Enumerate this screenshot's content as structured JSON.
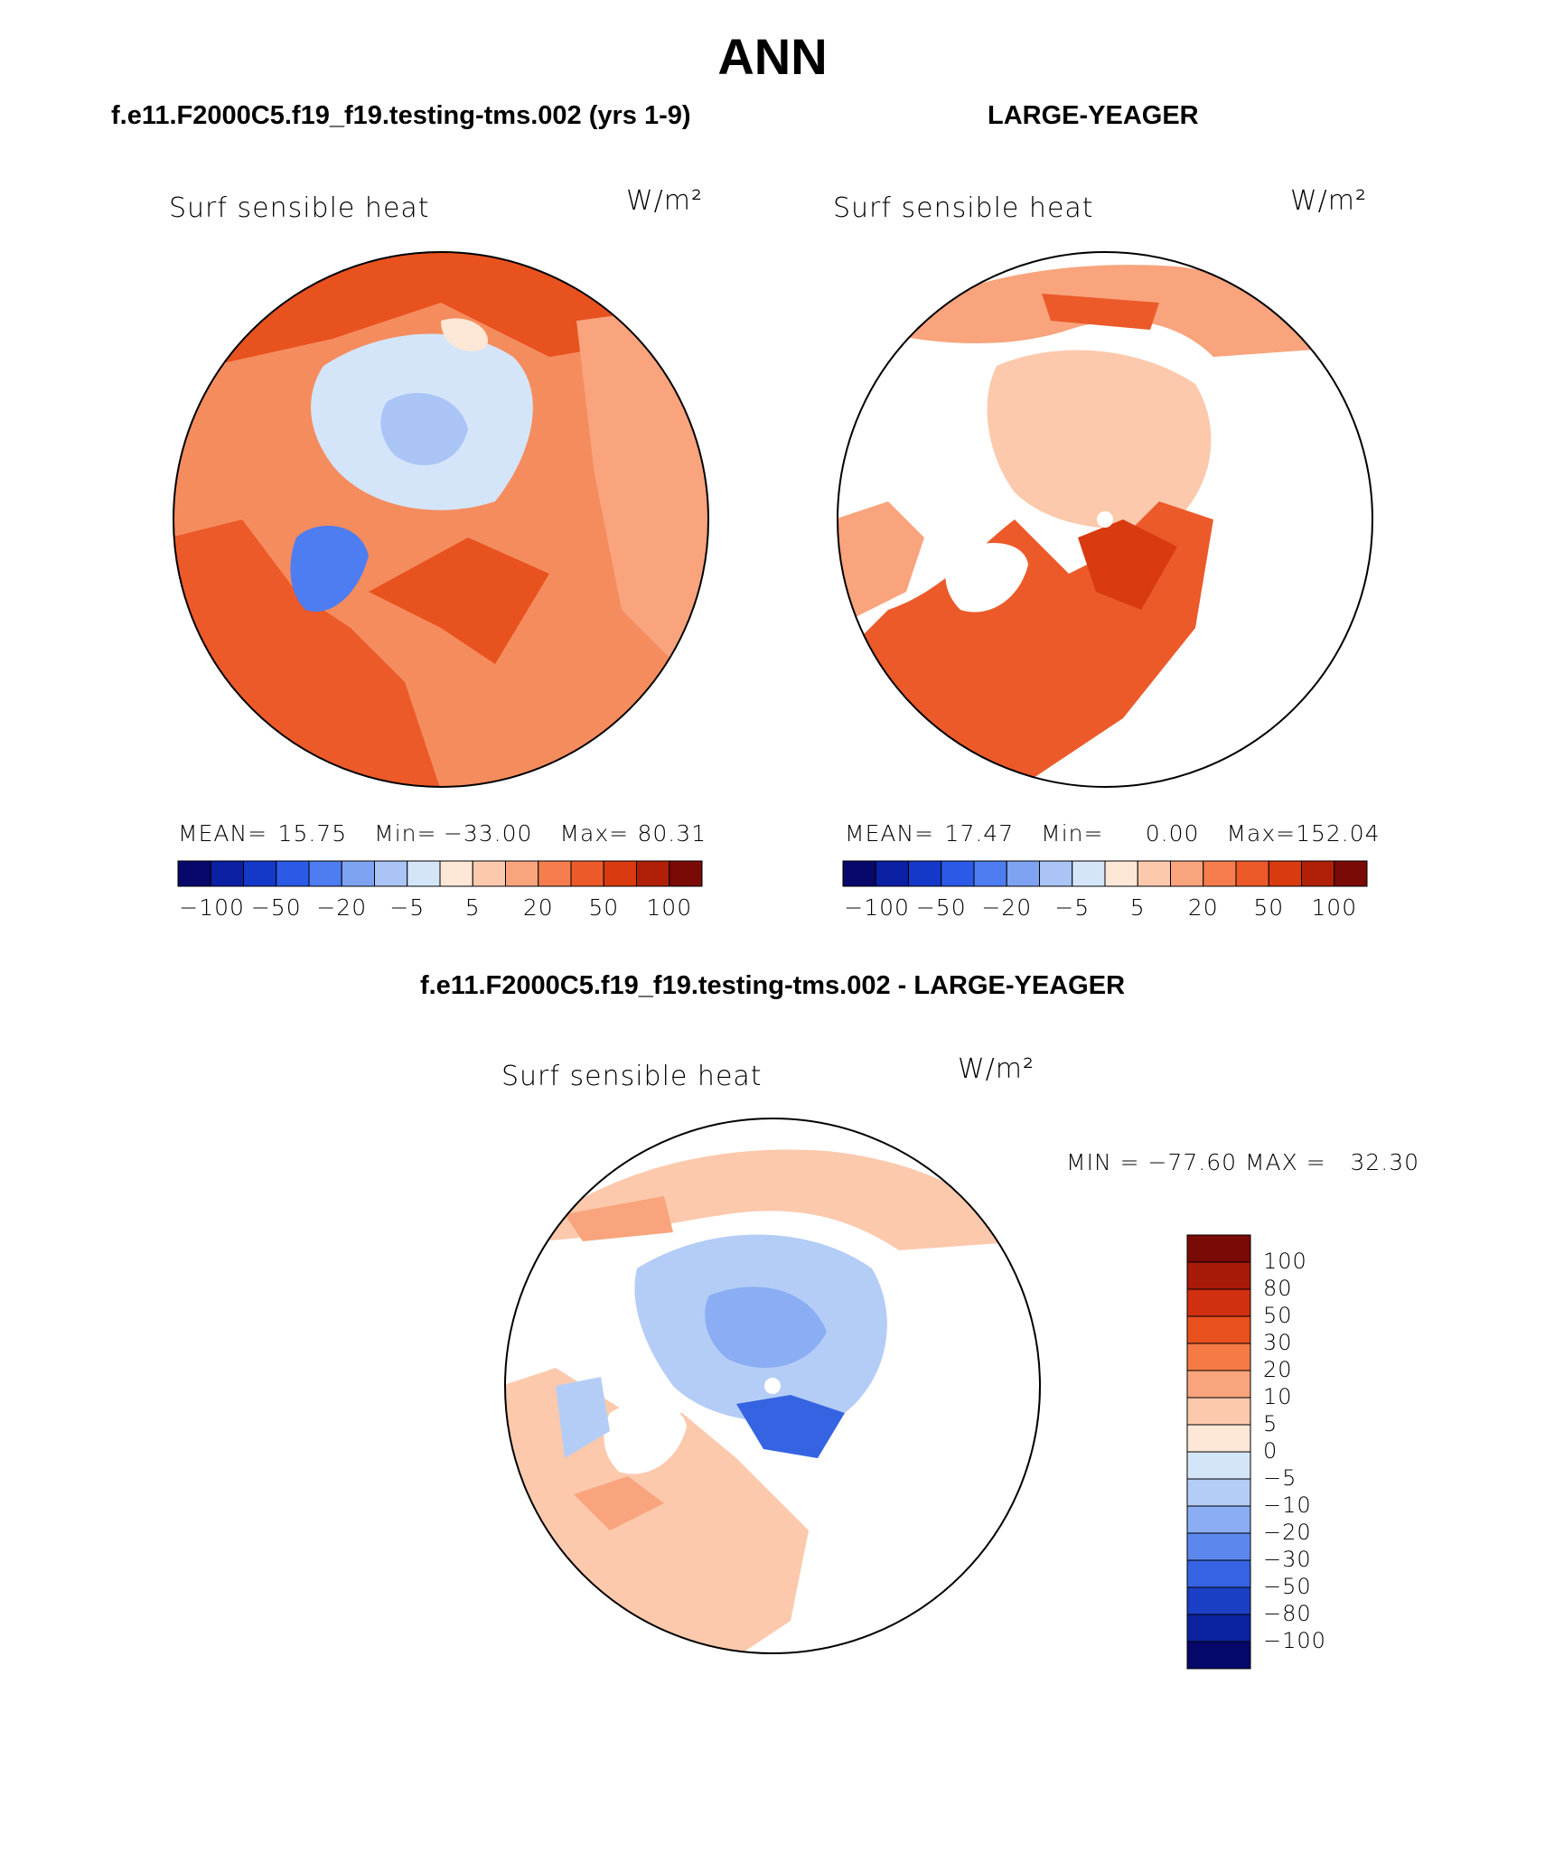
{
  "title": "ANN",
  "panels": [
    {
      "case_title": "f.e11.F2000C5.f19_f19.testing-tms.002 (yrs 1-9)",
      "variable": "Surf sensible heat",
      "unit": "W/m²",
      "mean_label": "MEAN=",
      "mean": "15.75",
      "min_label": "Min=",
      "min": "−33.00",
      "max_label": "Max=",
      "max": "80.31"
    },
    {
      "case_title": "LARGE-YEAGER",
      "variable": "Surf sensible heat",
      "unit": "W/m²",
      "mean_label": "MEAN=",
      "mean": "17.47",
      "min_label": "Min=",
      "min": "0.00",
      "max_label": "Max=",
      "max": "152.04"
    }
  ],
  "horizontal_colorbar": {
    "tick_labels": [
      "−100",
      "−50",
      "−20",
      "−5",
      "5",
      "20",
      "50",
      "100"
    ],
    "colors": [
      "#08086b",
      "#0b1fa3",
      "#1438c8",
      "#2a5ae6",
      "#4d7df0",
      "#7ea3f2",
      "#a9c4f5",
      "#d4e5fa",
      "#fde7d6",
      "#fcc9ad",
      "#f9a47d",
      "#f57d4e",
      "#ec5a2a",
      "#d93a10",
      "#b02008",
      "#7a0a05"
    ]
  },
  "difference": {
    "title": "f.e11.F2000C5.f19_f19.testing-tms.002 - LARGE-YEAGER",
    "variable": "Surf sensible heat",
    "unit": "W/m²",
    "minmax_label": "MIN = −77.60 MAX =   32.30",
    "colorbar_labels": [
      "100",
      "80",
      "50",
      "30",
      "20",
      "10",
      "5",
      "0",
      "−5",
      "−10",
      "−20",
      "−30",
      "−50",
      "−80",
      "−100"
    ],
    "colors": [
      "#7a0a05",
      "#a81a08",
      "#d03010",
      "#e8501e",
      "#f57a45",
      "#f9a47d",
      "#fcc9ad",
      "#fde7d6",
      "#d4e5fa",
      "#b4cdf6",
      "#8aadf3",
      "#5c88ee",
      "#3563e2",
      "#1a3fc4",
      "#0b23a0",
      "#06086a"
    ]
  }
}
